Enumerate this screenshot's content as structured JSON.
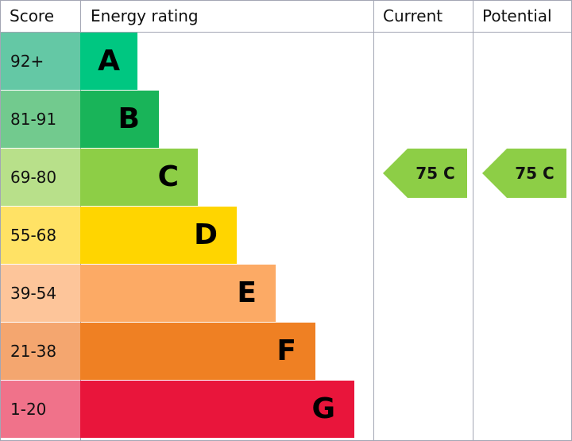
{
  "chart_data": {
    "type": "bar",
    "headers": {
      "score": "Score",
      "rating": "Energy rating",
      "current": "Current",
      "potential": "Potential"
    },
    "bands": [
      {
        "score": "92+",
        "letter": "A",
        "color": "#00c781",
        "score_color": "#64c8a5"
      },
      {
        "score": "81-91",
        "letter": "B",
        "color": "#19b459",
        "score_color": "#72ca8e"
      },
      {
        "score": "69-80",
        "letter": "C",
        "color": "#8dce46",
        "score_color": "#b8e08a"
      },
      {
        "score": "55-68",
        "letter": "D",
        "color": "#ffd500",
        "score_color": "#ffe265"
      },
      {
        "score": "39-54",
        "letter": "E",
        "color": "#fcaa65",
        "score_color": "#fdc59a"
      },
      {
        "score": "21-38",
        "letter": "F",
        "color": "#ef8023",
        "score_color": "#f4a66f"
      },
      {
        "score": "1-20",
        "letter": "G",
        "color": "#e9153b",
        "score_color": "#f0728a"
      }
    ],
    "current": {
      "value": 75,
      "letter": "C",
      "label": "75 C",
      "color": "#8dce46"
    },
    "potential": {
      "value": 75,
      "letter": "C",
      "label": "75 C",
      "color": "#8dce46"
    }
  }
}
